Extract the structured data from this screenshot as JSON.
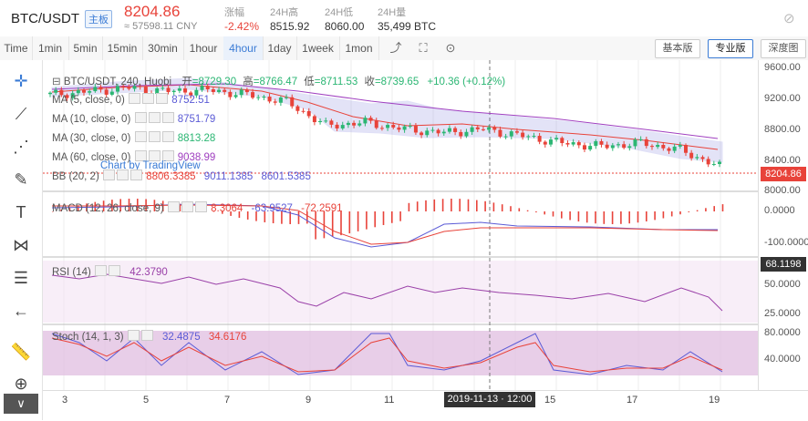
{
  "header": {
    "pair": "BTC/USDT",
    "badge": "主板",
    "price": "8204.86",
    "cny": "≈ 57598.11 CNY",
    "stats": [
      {
        "label": "涨幅",
        "value": "-2.42%"
      },
      {
        "label": "24H高",
        "value": "8515.92"
      },
      {
        "label": "24H低",
        "value": "8060.00"
      },
      {
        "label": "24H量",
        "value": "35,499 BTC"
      }
    ]
  },
  "toolbar": {
    "time_label": "Time",
    "intervals": [
      "1min",
      "5min",
      "15min",
      "30min",
      "1hour",
      "4hour",
      "1day",
      "1week",
      "1mon"
    ],
    "active_interval": "4hour",
    "views": [
      "基本版",
      "专业版",
      "深度图"
    ],
    "active_view": "专业版"
  },
  "legend": {
    "main": {
      "title": "BTC/USDT, 240, Huobi",
      "open_label": "开",
      "open": "8729.30",
      "high_label": "高",
      "high": "8766.47",
      "low_label": "低",
      "low": "8711.53",
      "close_label": "收",
      "close": "8739.65",
      "change": "+10.36 (+0.12%)"
    },
    "ma5": {
      "label": "MA (5, close, 0)",
      "value": "8752.51"
    },
    "ma10": {
      "label": "MA (10, close, 0)",
      "value": "8751.79"
    },
    "ma30": {
      "label": "MA (30, close, 0)",
      "value": "8813.28"
    },
    "ma60": {
      "label": "MA (60, close, 0)",
      "value": "9038.99"
    },
    "bb": {
      "label": "BB (20, 2)",
      "v1": "8806.3385",
      "v2": "9011.1385",
      "v3": "8601.5385"
    },
    "watermark": "Chart by TradingView",
    "macd": {
      "label": "MACD (12, 26, close, 9)",
      "v1": "8.3064",
      "v2": "-63.9527",
      "v3": "-72.2591"
    },
    "rsi": {
      "label": "RSI (14)",
      "value": "42.3790"
    },
    "stoch": {
      "label": "Stoch (14, 1, 3)",
      "v1": "32.4875",
      "v2": "34.6176"
    }
  },
  "price_axis": {
    "labels": [
      "9600.00",
      "9200.00",
      "8800.00",
      "8400.00",
      "8000.00"
    ],
    "current": "8204.86",
    "macd_labels": [
      "0.0000",
      "-100.0000"
    ],
    "rsi_labels": [
      "68.1198",
      "50.0000",
      "25.0000"
    ],
    "stoch_labels": [
      "80.0000",
      "40.0000"
    ]
  },
  "time_axis": {
    "labels": [
      "3",
      "5",
      "7",
      "9",
      "11",
      "15",
      "17",
      "19"
    ],
    "crosshair": "2019-11-13 · 12:00"
  },
  "colors": {
    "up": "#2bb673",
    "down": "#e8433a",
    "bb": "#5b5bd6",
    "ma30": "#e8433a",
    "ma60": "#a040c0"
  },
  "chart_data": {
    "type": "candlestick",
    "x": [
      "11-02",
      "11-03",
      "11-04",
      "11-05",
      "11-06",
      "11-07",
      "11-08",
      "11-09",
      "11-10",
      "11-11",
      "11-12",
      "11-13",
      "11-14",
      "11-15",
      "11-16",
      "11-17",
      "11-18",
      "11-19"
    ],
    "close": [
      9250,
      9300,
      9350,
      9300,
      9320,
      9250,
      9150,
      8800,
      8850,
      8750,
      8700,
      8750,
      8650,
      8550,
      8500,
      8550,
      8450,
      8205
    ],
    "ylim": [
      7900,
      9700
    ]
  }
}
